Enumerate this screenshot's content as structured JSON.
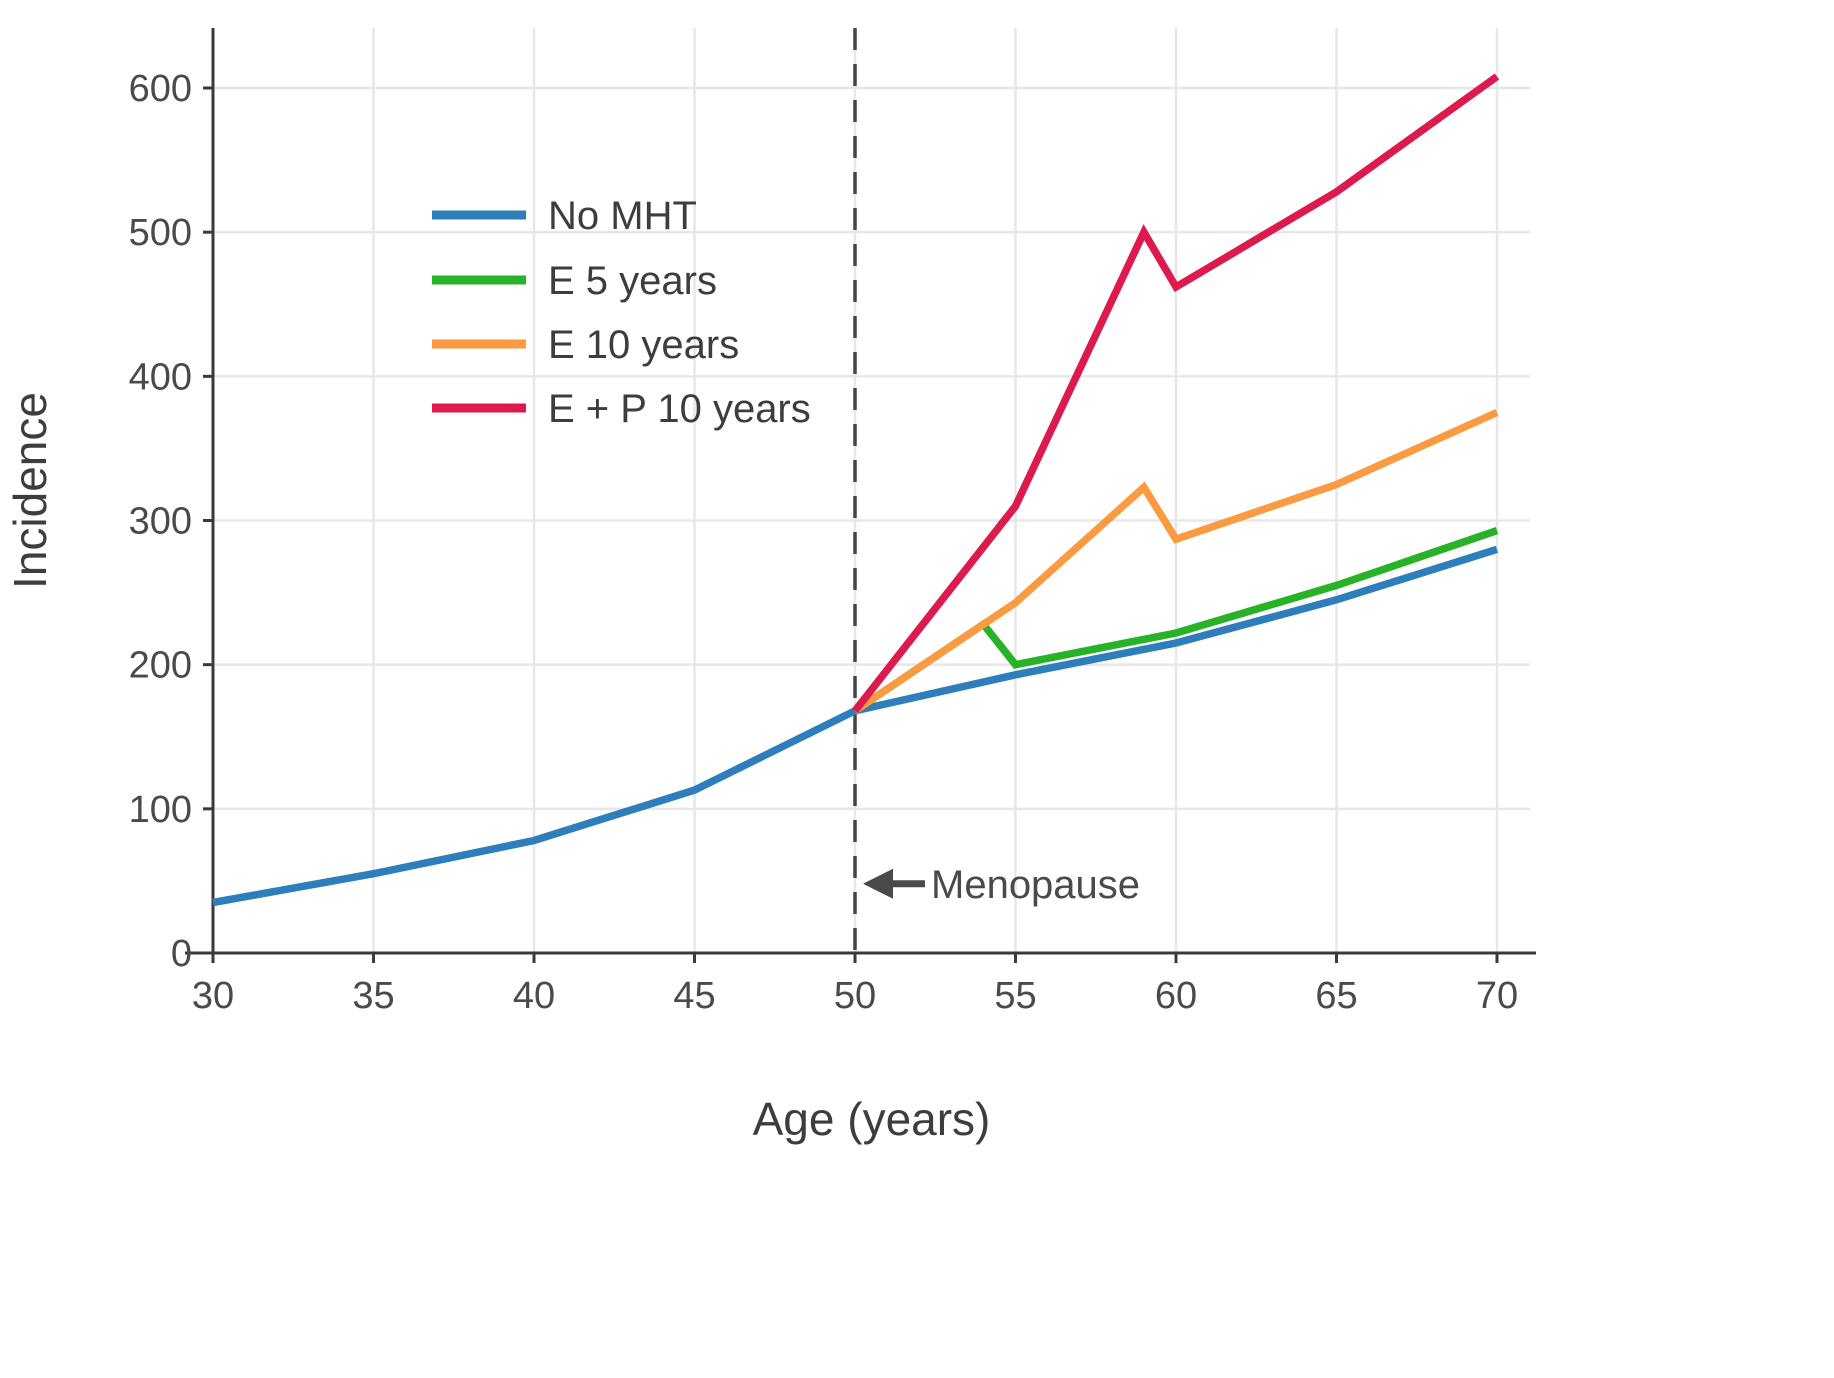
{
  "chart_data": {
    "type": "line",
    "title": "",
    "xlabel": "Age (years)",
    "ylabel": "Incidence",
    "xlim": [
      30,
      70
    ],
    "ylim": [
      0,
      640
    ],
    "xticks": [
      30,
      35,
      40,
      45,
      50,
      55,
      60,
      65,
      70
    ],
    "yticks": [
      0,
      100,
      200,
      300,
      400,
      500,
      600
    ],
    "grid": true,
    "legend_position": "upper-left-inside",
    "series": [
      {
        "name": "No MHT",
        "color": "#2e7ebc",
        "points": [
          [
            30,
            35
          ],
          [
            35,
            55
          ],
          [
            40,
            78
          ],
          [
            45,
            113
          ],
          [
            50,
            168
          ],
          [
            55,
            193
          ],
          [
            60,
            215
          ],
          [
            65,
            245
          ],
          [
            70,
            280
          ]
        ]
      },
      {
        "name": "E 5 years",
        "color": "#28b228",
        "points": [
          [
            50,
            168
          ],
          [
            54,
            228
          ],
          [
            55,
            200
          ],
          [
            60,
            222
          ],
          [
            65,
            255
          ],
          [
            70,
            293
          ]
        ]
      },
      {
        "name": "E 10 years",
        "color": "#fa9a41",
        "points": [
          [
            50,
            168
          ],
          [
            55,
            243
          ],
          [
            59,
            323
          ],
          [
            60,
            287
          ],
          [
            65,
            325
          ],
          [
            70,
            375
          ]
        ]
      },
      {
        "name": "E + P 10 years",
        "color": "#dd1a4e",
        "points": [
          [
            50,
            168
          ],
          [
            55,
            310
          ],
          [
            59,
            500
          ],
          [
            60,
            462
          ],
          [
            65,
            528
          ],
          [
            70,
            608
          ]
        ]
      }
    ],
    "reference_line": {
      "x": 50,
      "style": "dashed",
      "color": "#444444"
    },
    "annotation": {
      "label": "Menopause",
      "arrow": "left",
      "x": 50,
      "y": 48
    },
    "colors": {
      "grid": "#e7e7e7",
      "axis": "#3a3a3a",
      "tick_label": "#4a4a4a",
      "axis_label": "#3d3d3d",
      "legend_label": "#3d3d3d",
      "annotation": "#4a4a4a"
    }
  }
}
